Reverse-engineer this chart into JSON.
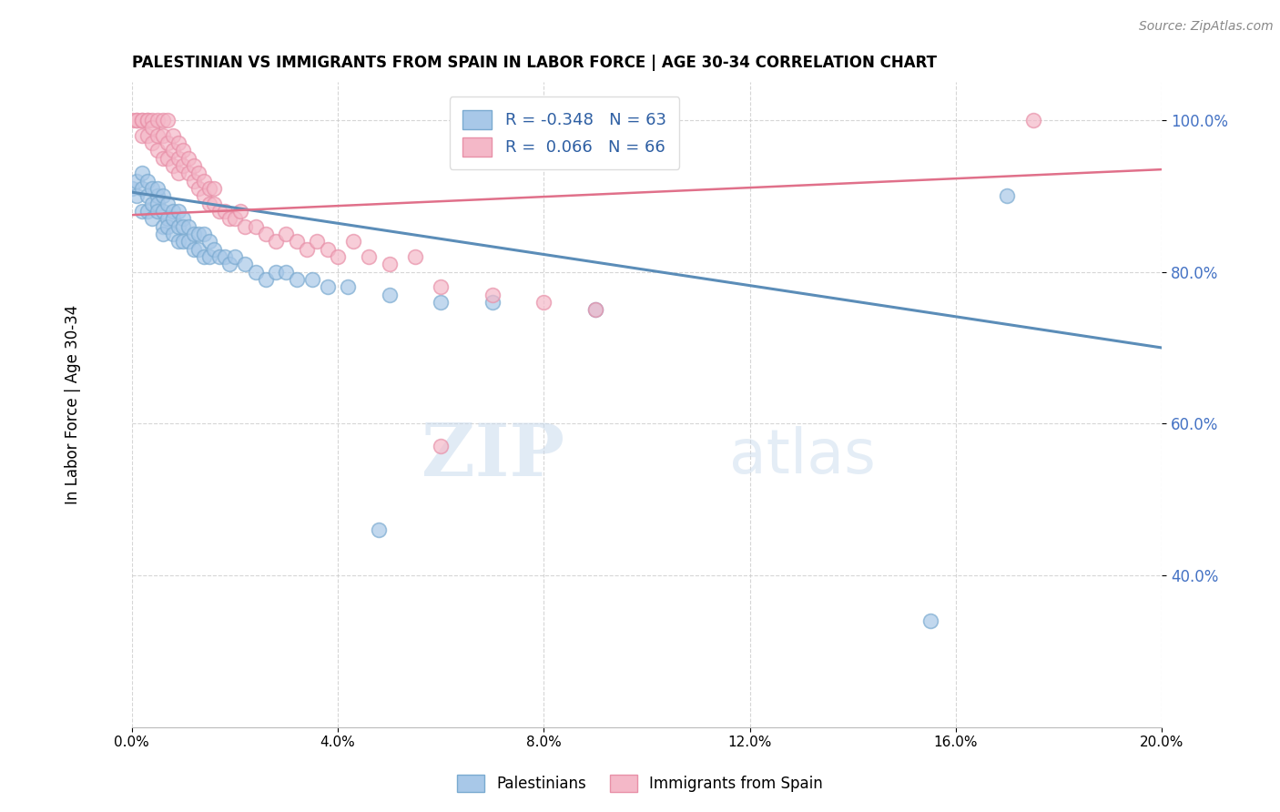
{
  "title": "PALESTINIAN VS IMMIGRANTS FROM SPAIN IN LABOR FORCE | AGE 30-34 CORRELATION CHART",
  "source": "Source: ZipAtlas.com",
  "ylabel": "In Labor Force | Age 30-34",
  "xlim": [
    0.0,
    0.2
  ],
  "ylim": [
    0.2,
    1.05
  ],
  "yticks": [
    0.4,
    0.6,
    0.8,
    1.0
  ],
  "xticks": [
    0.0,
    0.04,
    0.08,
    0.12,
    0.16,
    0.2
  ],
  "blue_R": -0.348,
  "blue_N": 63,
  "pink_R": 0.066,
  "pink_N": 66,
  "blue_color": "#A8C8E8",
  "pink_color": "#F4B8C8",
  "blue_edge_color": "#7AAAD0",
  "pink_edge_color": "#E890A8",
  "blue_line_color": "#5B8DB8",
  "pink_line_color": "#E0708A",
  "watermark_zip": "ZIP",
  "watermark_atlas": "atlas",
  "legend_labels": [
    "Palestinians",
    "Immigrants from Spain"
  ],
  "blue_scatter_x": [
    0.0,
    0.001,
    0.001,
    0.002,
    0.002,
    0.002,
    0.003,
    0.003,
    0.003,
    0.004,
    0.004,
    0.004,
    0.005,
    0.005,
    0.005,
    0.005,
    0.006,
    0.006,
    0.006,
    0.006,
    0.007,
    0.007,
    0.007,
    0.008,
    0.008,
    0.008,
    0.009,
    0.009,
    0.009,
    0.01,
    0.01,
    0.01,
    0.011,
    0.011,
    0.012,
    0.012,
    0.013,
    0.013,
    0.014,
    0.014,
    0.015,
    0.015,
    0.016,
    0.017,
    0.018,
    0.019,
    0.02,
    0.022,
    0.024,
    0.026,
    0.028,
    0.03,
    0.032,
    0.035,
    0.038,
    0.042,
    0.05,
    0.06,
    0.07,
    0.09,
    0.048,
    0.155,
    0.17
  ],
  "blue_scatter_y": [
    0.91,
    0.9,
    0.92,
    0.91,
    0.93,
    0.88,
    0.92,
    0.9,
    0.88,
    0.91,
    0.89,
    0.87,
    0.9,
    0.91,
    0.89,
    0.88,
    0.9,
    0.88,
    0.86,
    0.85,
    0.89,
    0.87,
    0.86,
    0.88,
    0.87,
    0.85,
    0.88,
    0.86,
    0.84,
    0.87,
    0.86,
    0.84,
    0.86,
    0.84,
    0.85,
    0.83,
    0.85,
    0.83,
    0.85,
    0.82,
    0.84,
    0.82,
    0.83,
    0.82,
    0.82,
    0.81,
    0.82,
    0.81,
    0.8,
    0.79,
    0.8,
    0.8,
    0.79,
    0.79,
    0.78,
    0.78,
    0.77,
    0.76,
    0.76,
    0.75,
    0.46,
    0.34,
    0.9
  ],
  "pink_scatter_x": [
    0.0,
    0.001,
    0.001,
    0.002,
    0.002,
    0.002,
    0.003,
    0.003,
    0.003,
    0.004,
    0.004,
    0.004,
    0.005,
    0.005,
    0.005,
    0.006,
    0.006,
    0.006,
    0.007,
    0.007,
    0.007,
    0.008,
    0.008,
    0.008,
    0.009,
    0.009,
    0.009,
    0.01,
    0.01,
    0.011,
    0.011,
    0.012,
    0.012,
    0.013,
    0.013,
    0.014,
    0.014,
    0.015,
    0.015,
    0.016,
    0.016,
    0.017,
    0.018,
    0.019,
    0.02,
    0.021,
    0.022,
    0.024,
    0.026,
    0.028,
    0.03,
    0.032,
    0.034,
    0.036,
    0.038,
    0.04,
    0.043,
    0.046,
    0.05,
    0.055,
    0.06,
    0.07,
    0.08,
    0.09,
    0.06,
    0.175
  ],
  "pink_scatter_y": [
    1.0,
    1.0,
    1.0,
    1.0,
    1.0,
    0.98,
    1.0,
    1.0,
    0.98,
    1.0,
    0.99,
    0.97,
    1.0,
    0.98,
    0.96,
    1.0,
    0.98,
    0.95,
    1.0,
    0.97,
    0.95,
    0.98,
    0.96,
    0.94,
    0.97,
    0.95,
    0.93,
    0.96,
    0.94,
    0.95,
    0.93,
    0.94,
    0.92,
    0.93,
    0.91,
    0.92,
    0.9,
    0.91,
    0.89,
    0.91,
    0.89,
    0.88,
    0.88,
    0.87,
    0.87,
    0.88,
    0.86,
    0.86,
    0.85,
    0.84,
    0.85,
    0.84,
    0.83,
    0.84,
    0.83,
    0.82,
    0.84,
    0.82,
    0.81,
    0.82,
    0.78,
    0.77,
    0.76,
    0.75,
    0.57,
    1.0
  ]
}
